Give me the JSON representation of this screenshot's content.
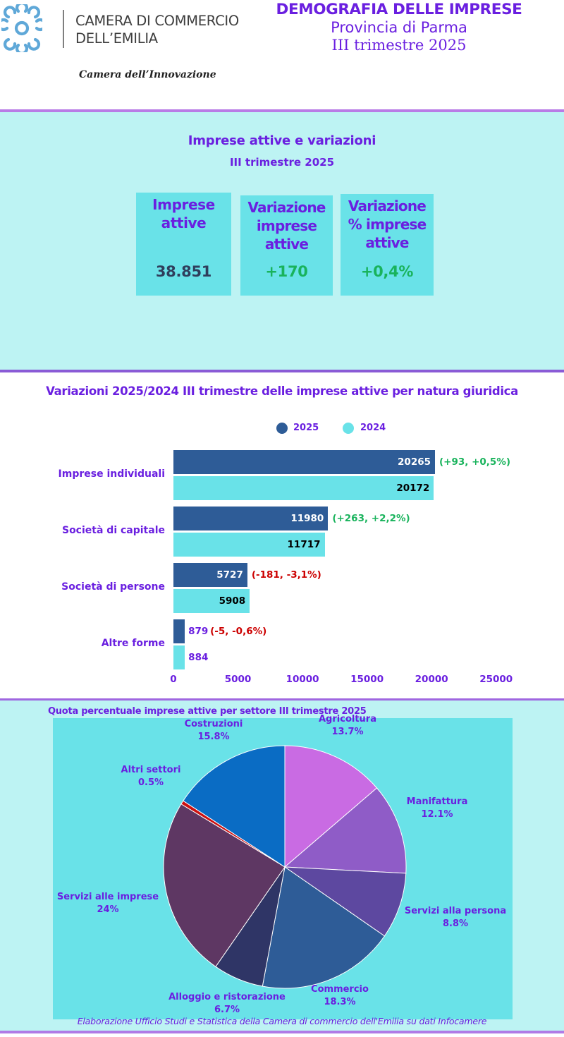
{
  "header": {
    "org_line1": "CAMERA DI COMMERCIO",
    "org_line2": "DELL’EMILIA",
    "tagline": "Camera dell’Innovazione",
    "title": "DEMOGRAFIA DELLE IMPRESE",
    "province": "Provincia di Parma",
    "period": "III trimestre 2025"
  },
  "kpi": {
    "title": "Imprese attive e variazioni",
    "subtitle": "III trimestre 2025",
    "cards": [
      {
        "label": "Imprese attive",
        "value": "38.851",
        "color": "#2f3e5c"
      },
      {
        "label": "Variazione imprese attive",
        "value": "+170",
        "color": "#19b35c"
      },
      {
        "label": "Variazione % imprese attive",
        "value": "+0,4%",
        "color": "#19b35c"
      }
    ]
  },
  "chart_data": [
    {
      "type": "bar",
      "orientation": "horizontal",
      "title": "Variazioni 2025/2024 III trimestre delle imprese attive per natura giuridica",
      "categories": [
        "Imprese individuali",
        "Società di capitale",
        "Società di persone",
        "Altre forme"
      ],
      "series": [
        {
          "name": "2025",
          "values": [
            20265,
            11980,
            5727,
            879
          ],
          "color": "#2e5c97"
        },
        {
          "name": "2024",
          "values": [
            20172,
            11717,
            5908,
            884
          ],
          "color": "#69e2e8"
        }
      ],
      "annotations": [
        "(+93, +0,5%)",
        "(+263, +2,2%)",
        "(-181, -3,1%)",
        "(-5, -0,6%)"
      ],
      "annotation_colors": [
        "#19b35c",
        "#19b35c",
        "#cc0000",
        "#cc0000"
      ],
      "xlim": [
        0,
        25000
      ],
      "xticks": [
        0,
        5000,
        10000,
        15000,
        20000,
        25000
      ],
      "legend": "top"
    },
    {
      "type": "pie",
      "title": "Quota percentuale imprese attive per settore III trimestre 2025",
      "slices": [
        {
          "label": "Agricoltura",
          "value": 13.7,
          "display": "13.7%",
          "color": "#c96be3"
        },
        {
          "label": "Manifattura",
          "value": 12.1,
          "display": "12.1%",
          "color": "#8f5cc7"
        },
        {
          "label": "Servizi alla persona",
          "value": 8.8,
          "display": "8.8%",
          "color": "#5d48a0"
        },
        {
          "label": "Commercio",
          "value": 18.3,
          "display": "18.3%",
          "color": "#2e5c97"
        },
        {
          "label": "Alloggio e ristorazione",
          "value": 6.7,
          "display": "6.7%",
          "color": "#2f3566"
        },
        {
          "label": "Servizi alle imprese",
          "value": 24,
          "display": "24%",
          "color": "#5e3763"
        },
        {
          "label": "Altri settori",
          "value": 0.5,
          "display": "0.5%",
          "color": "#cc1111"
        },
        {
          "label": "Costruzioni",
          "value": 15.8,
          "display": "15.8%",
          "color": "#0a6cc4"
        }
      ]
    }
  ],
  "footer": "Elaborazione Ufficio Studi e Statistica della Camera di commercio dell'Emilia su dati Infocamere"
}
